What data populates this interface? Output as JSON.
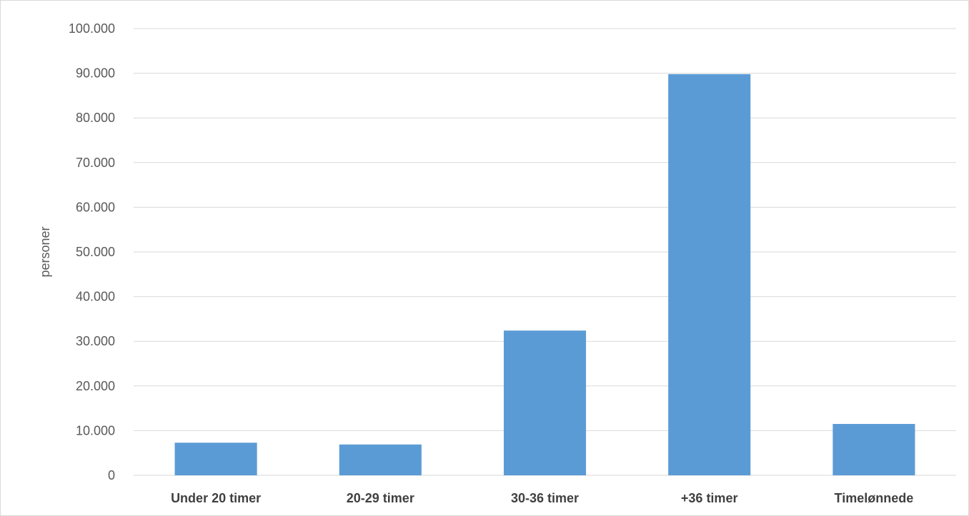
{
  "chart_data": {
    "type": "bar",
    "title": "",
    "xlabel": "",
    "ylabel": "personer",
    "categories": [
      "Under 20 timer",
      "20-29 timer",
      "30-36 timer",
      "+36 timer",
      "Timelønnede"
    ],
    "values": [
      7300,
      6900,
      32400,
      89800,
      11500
    ],
    "ylim": [
      0,
      100000
    ],
    "y_ticks": [
      0,
      10000,
      20000,
      30000,
      40000,
      50000,
      60000,
      70000,
      80000,
      90000,
      100000
    ],
    "y_tick_labels": [
      "0",
      "10.000",
      "20.000",
      "30.000",
      "40.000",
      "50.000",
      "60.000",
      "70.000",
      "80.000",
      "90.000",
      "100.000"
    ],
    "grid": true,
    "legend": "none",
    "bar_color": "#5b9bd5",
    "grid_color": "#d9d9d9"
  }
}
